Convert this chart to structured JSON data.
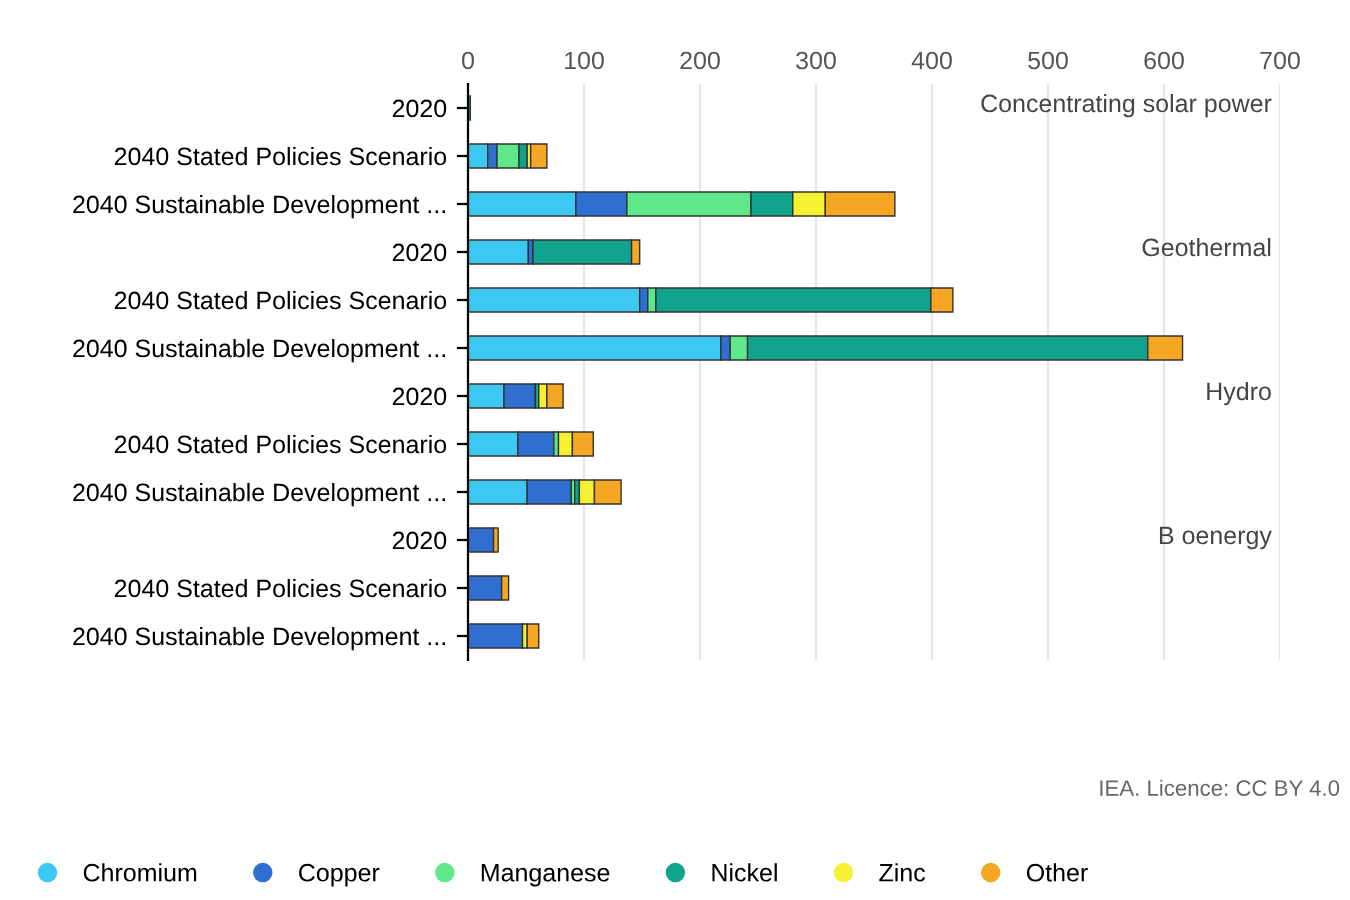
{
  "chart_data": {
    "type": "bar",
    "orientation": "horizontal",
    "stacked": true,
    "categories": [
      "2020",
      "2040 Stated Policies Scenario",
      "2040 Sustainable Development ...",
      "2020",
      "2040 Stated Policies Scenario",
      "2040 Sustainable Development ...",
      "2020",
      "2040 Stated Policies Scenario",
      "2040 Sustainable Development ...",
      "2020",
      "2040 Stated Policies Scenario",
      "2040 Sustainable Development ..."
    ],
    "series": [
      {
        "name": "Chromium",
        "color": "#3cc8f0",
        "values": [
          0,
          17,
          93,
          52,
          148,
          218,
          31,
          43,
          51,
          0,
          0,
          0
        ]
      },
      {
        "name": "Copper",
        "color": "#2f6fd0",
        "values": [
          null,
          8,
          44,
          4,
          7,
          8,
          27,
          31,
          38,
          22,
          29,
          47
        ]
      },
      {
        "name": "Manganese",
        "color": "#5ee88a",
        "values": [
          0,
          19,
          107,
          0,
          7,
          15,
          0,
          4,
          3,
          0,
          0,
          0
        ]
      },
      {
        "name": "Nickel",
        "color": "#12a38f",
        "values": [
          2,
          7,
          36,
          85,
          237,
          345,
          3,
          0,
          4,
          0,
          0,
          0
        ]
      },
      {
        "name": "Zinc",
        "color": "#f5f032",
        "values": [
          0,
          3,
          28,
          0,
          0,
          0,
          7,
          12,
          13,
          0,
          0,
          4
        ]
      },
      {
        "name": "Other",
        "color": "#f5a623",
        "values": [
          0,
          14,
          60,
          7,
          19,
          30,
          14,
          18,
          23,
          4,
          6,
          10
        ]
      }
    ],
    "xlim": [
      0,
      700
    ],
    "xticks": [
      0,
      100,
      200,
      300,
      400,
      500,
      600,
      700
    ],
    "grid": "x",
    "legend": "bottom",
    "marker": "circle",
    "annotations": [
      "Concentrating solar power",
      "Geothermal",
      "Hydro",
      "B oenergy",
      "IEA. Licence: CC BY 4.0"
    ]
  }
}
